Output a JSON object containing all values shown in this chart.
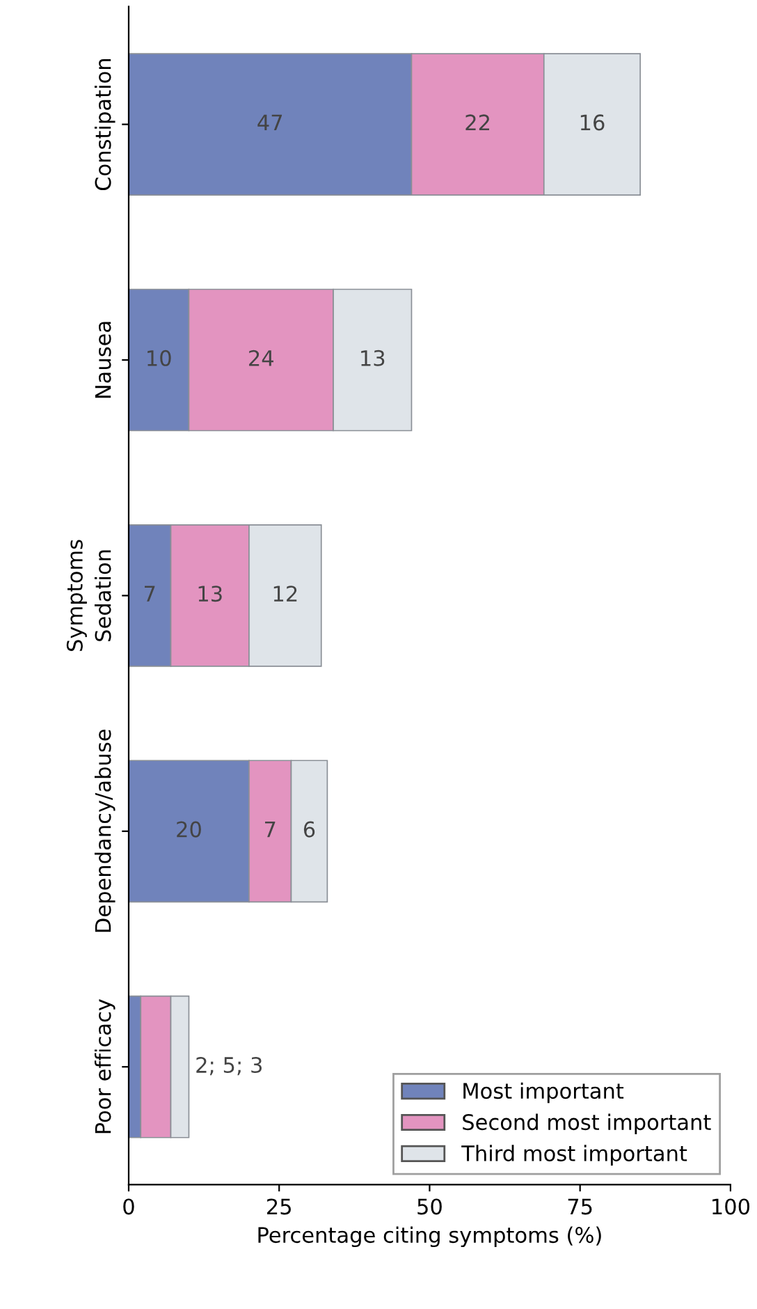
{
  "chart_data": {
    "type": "bar",
    "orientation": "horizontal",
    "stacked": true,
    "xlabel": "Percentage citing symptoms (%)",
    "ylabel": "Symptoms",
    "categories": [
      "Constipation",
      "Nausea",
      "Sedation",
      "Dependancy/abuse",
      "Poor efficacy"
    ],
    "series": [
      {
        "name": "Most important",
        "color": "#7083bb",
        "values": [
          47,
          10,
          7,
          20,
          2
        ],
        "value_labels": [
          "47",
          "10",
          "7",
          "20",
          null
        ]
      },
      {
        "name": "Second most important",
        "color": "#e394c0",
        "values": [
          22,
          24,
          13,
          7,
          5
        ],
        "value_labels": [
          "22",
          "24",
          "13",
          "7",
          null
        ]
      },
      {
        "name": "Third most important",
        "color": "#dfe4e9",
        "values": [
          16,
          13,
          12,
          6,
          3
        ],
        "value_labels": [
          "16",
          "13",
          "12",
          "6",
          null
        ]
      }
    ],
    "annotations": [
      {
        "text": "2; 5; 3",
        "x": 10,
        "y": "Poor efficacy"
      }
    ],
    "xlim": [
      0,
      100
    ],
    "xticks": [
      0,
      25,
      50,
      75,
      100
    ],
    "grid": false,
    "legend": "bottom right"
  }
}
